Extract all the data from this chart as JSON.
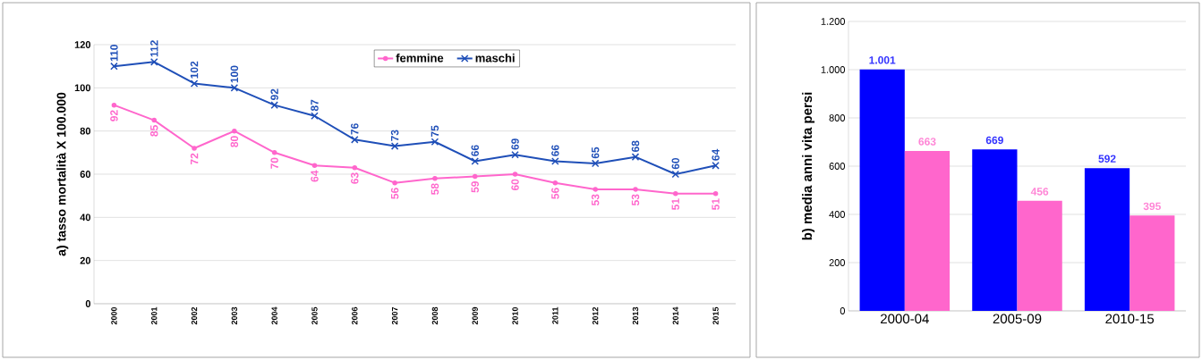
{
  "chart_data": [
    {
      "type": "line",
      "ylabel": "a) tasso mortalità X 100.000",
      "categories": [
        "2000",
        "2001",
        "2002",
        "2003",
        "2004",
        "2005",
        "2006",
        "2007",
        "2008",
        "2009",
        "2010",
        "2011",
        "2012",
        "2013",
        "2014",
        "2015"
      ],
      "series": [
        {
          "name": "femmine",
          "color": "#ff66cc",
          "marker": "circle",
          "values": [
            92,
            85,
            72,
            80,
            70,
            64,
            63,
            56,
            58,
            59,
            60,
            56,
            53,
            53,
            51,
            51
          ]
        },
        {
          "name": "maschi",
          "color": "#1f4fb8",
          "marker": "cross",
          "values": [
            110,
            112,
            102,
            100,
            92,
            87,
            76,
            73,
            75,
            66,
            69,
            66,
            65,
            68,
            60,
            64
          ]
        }
      ],
      "ylim": [
        0,
        120
      ],
      "yticks": [
        0,
        20,
        40,
        60,
        80,
        100,
        120
      ],
      "grid": "y",
      "legend": "top",
      "data_labels": true
    },
    {
      "type": "bar",
      "ylabel": "b) media  anni vita persi",
      "categories": [
        "2000-04",
        "2005-09",
        "2010-15"
      ],
      "series": [
        {
          "color": "#0000ff",
          "values": [
            1001,
            669,
            592
          ],
          "value_labels": [
            "1.001",
            "669",
            "592"
          ]
        },
        {
          "color": "#ff66cc",
          "values": [
            663,
            456,
            395
          ],
          "value_labels": [
            "663",
            "456",
            "395"
          ]
        }
      ],
      "ylim": [
        0,
        1200
      ],
      "yticks": [
        0,
        200,
        400,
        600,
        800,
        {
          "value": 1000,
          "label": "1.000"
        },
        {
          "value": 1200,
          "label": "1.200"
        }
      ],
      "grid": "y"
    }
  ]
}
